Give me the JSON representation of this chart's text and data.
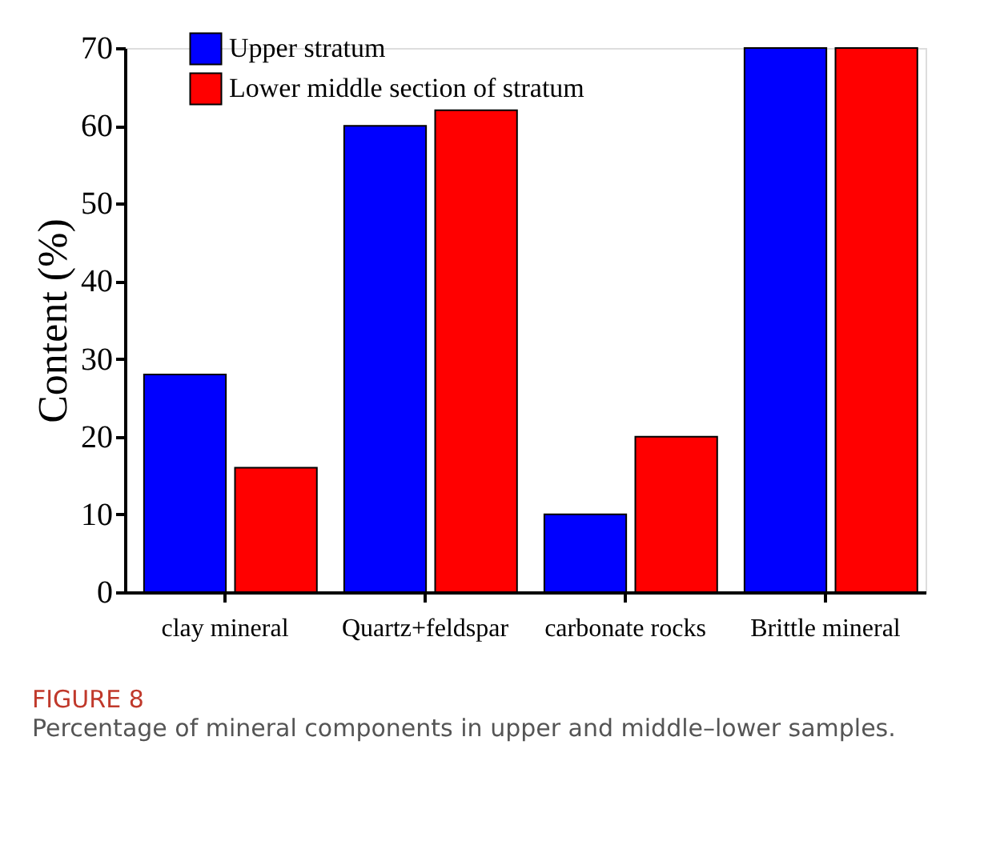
{
  "chart_data": {
    "type": "bar",
    "categories": [
      "clay mineral",
      "Quartz+feldspar",
      "carbonate rocks",
      "Brittle mineral"
    ],
    "series": [
      {
        "name": "Upper stratum",
        "color": "#0000ff",
        "values": [
          28,
          60,
          10,
          70
        ]
      },
      {
        "name": "Lower middle section of stratum",
        "color": "#ff0000",
        "values": [
          16,
          62,
          20,
          70
        ]
      }
    ],
    "ylabel": "Content (%)",
    "ylim": [
      0,
      70
    ],
    "yticks": [
      0,
      10,
      20,
      30,
      40,
      50,
      60,
      70
    ],
    "grid": false,
    "legend": "top left",
    "annotations": [
      "FIGURE 8",
      "Percentage of mineral components in upper and middle–lower samples."
    ]
  }
}
